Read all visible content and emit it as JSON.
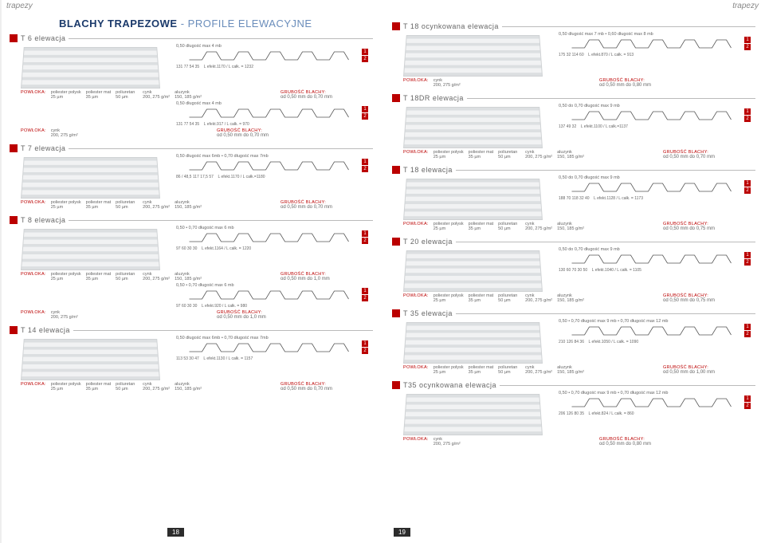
{
  "top_word": "trapezy",
  "main_title_a": "BLACHY TRAPEZOWE",
  "main_title_sep": " - ",
  "main_title_b": "PROFILE ELEWACYJNE",
  "page_left": "18",
  "page_right": "19",
  "colors": {
    "accent": "#b00020",
    "title": "#1b3a6b",
    "text": "#666"
  },
  "coating_header": "POWŁOKA:",
  "thickness_header": "GRUBOŚĆ BLACHY:",
  "coating_cols": [
    "poliester połysk",
    "poliester mat",
    "poliuretan",
    "cynk",
    "aluzynk"
  ],
  "coating_vals": [
    "25 µm",
    "35 µm",
    "50 µm",
    "200, 275 g/m²",
    "150, 185 g/m²"
  ],
  "coating_cols_short": [
    "cynk"
  ],
  "coating_vals_short": [
    "200, 275 g/m²"
  ],
  "note_050_4": "0,50  długość max 4 mb",
  "note_050_6_070_7": "0,50 długość max 6mb   • 0,70 długość max 7mb",
  "note_050_070_6": "0,50  • 0,70 długość max 6 mb",
  "note_050_070_9": "0,50 do 0,70  długość max 9 mb",
  "note_050_7_060_8": "0,50  długość max 7 mb   • 0,60  długość max 8 mb",
  "note_050_070_9_12": "0,50  • 0,70 długość max 9 mb   • 0,70 długość max 12 mb",
  "sections_left": [
    {
      "name": "T 6 elewacja",
      "variants": [
        {
          "top": "note_050_4",
          "dims": "131  77  54     35",
          "leg": "L efekt.1170 / L całk. = 1232",
          "thick": "od 0,50 mm do 0,70 mm",
          "full": true
        },
        {
          "top": "note_050_4",
          "dims": "131  77  54     35",
          "leg": "L efekt.917 / L całk. = 970",
          "thick": "od 0,50 mm do 0,70 mm",
          "full": false,
          "short": true
        }
      ]
    },
    {
      "name": "T 7 elewacja",
      "variants": [
        {
          "top": "note_050_6_070_7",
          "dims": "86 / 48,5   117   17,5   57",
          "leg": "L efekt.1170 / L całk.=1180",
          "thick": "od 0,50 mm do 0,70 mm",
          "full": true
        }
      ]
    },
    {
      "name": "T 8 elewacja",
      "variants": [
        {
          "top": "note_050_070_6",
          "dims": "97   60  30   30",
          "leg": "L efekt.1164 / L całk. = 1220",
          "thick": "od 0,50 mm do 1,0 mm",
          "full": true
        },
        {
          "top": "note_050_070_6",
          "dims": "97   60  30   30",
          "leg": "L efekt.920 / L całk. = 980",
          "thick": "od 0,50 mm do 1,0 mm",
          "full": false,
          "short": true
        }
      ]
    },
    {
      "name": "T 14 elewacja",
      "variants": [
        {
          "top": "note_050_6_070_7",
          "dims": "113   53   30   47",
          "leg": "L efekt.1130 / L całk. = 1157",
          "thick": "od 0,50 mm do 0,70 mm",
          "full": true
        }
      ]
    }
  ],
  "sections_right": [
    {
      "name": "T 18 ocynkowana elewacja",
      "variants": [
        {
          "top": "note_050_7_060_8",
          "dims": "175     32   114  60",
          "leg": "L efekt.870 / L całk. = 913",
          "thick": "od 0,50 mm do 0,80 mm",
          "full": false,
          "short": true
        }
      ]
    },
    {
      "name": "T 18DR elewacja",
      "variants": [
        {
          "top": "note_050_070_9",
          "dims": "137   49   32",
          "leg": "L efekt.1100 / L całk.=1137",
          "thick": "od 0,50 mm do 0,70 mm",
          "full": true
        }
      ]
    },
    {
      "name": "T 18 elewacja",
      "variants": [
        {
          "top": "note_050_070_9",
          "dims": "188   70   118   32   40",
          "leg": "L efekt.1128 / L całk. = 1173",
          "thick": "od 0,50 mm do 0,75 mm",
          "full": true
        }
      ]
    },
    {
      "name": "T 20 elewacja",
      "variants": [
        {
          "top": "note_050_070_9",
          "dims": "130   60  70   30   50",
          "leg": "L efekt.1040 / L całk. = 1105",
          "thick": "od 0,50 mm do 0,75 mm",
          "full": true
        }
      ]
    },
    {
      "name": "T 35 elewacja",
      "variants": [
        {
          "top": "note_050_070_9_12",
          "dims": "210   126   84   36",
          "leg": "L efekt.1050 / L całk. = 1090",
          "thick": "od 0,50 mm do 1,00 mm",
          "full": true
        }
      ]
    },
    {
      "name": "T35 ocynkowana elewacja",
      "variants": [
        {
          "top": "note_050_070_9_12",
          "dims": "206   126   80   35",
          "leg": "L efekt.824 / L całk. = 860",
          "thick": "od 0,50 mm do 0,80 mm",
          "full": false,
          "short": true
        }
      ]
    }
  ]
}
